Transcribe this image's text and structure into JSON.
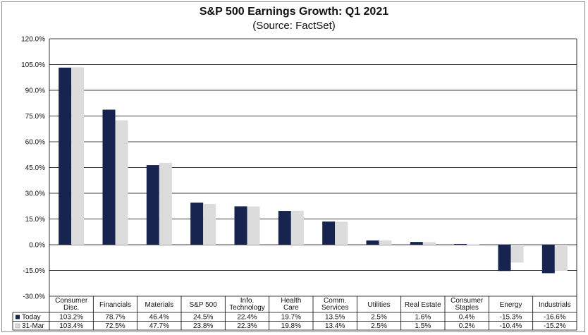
{
  "chart_data": {
    "type": "bar",
    "title": "S&P 500 Earnings Growth: Q1 2021",
    "subtitle": "(Source: FactSet)",
    "categories": [
      [
        "Consumer",
        "Disc."
      ],
      [
        "Financials"
      ],
      [
        "Materials"
      ],
      [
        "S&P 500"
      ],
      [
        "Info.",
        "Technology"
      ],
      [
        "Health",
        "Care"
      ],
      [
        "Comm.",
        "Services"
      ],
      [
        "Utilities"
      ],
      [
        "Real Estate"
      ],
      [
        "Consumer",
        "Staples"
      ],
      [
        "Energy"
      ],
      [
        "Industrials"
      ]
    ],
    "series": [
      {
        "name": "Today",
        "color": "#17244f",
        "values": [
          103.2,
          78.7,
          46.4,
          24.5,
          22.4,
          19.7,
          13.5,
          2.5,
          1.6,
          0.4,
          -15.3,
          -16.6
        ],
        "labels": [
          "103.2%",
          "78.7%",
          "46.4%",
          "24.5%",
          "22.4%",
          "19.7%",
          "13.5%",
          "2.5%",
          "1.6%",
          "0.4%",
          "-15.3%",
          "-16.6%"
        ]
      },
      {
        "name": "31-Mar",
        "color": "#dcdcdc",
        "values": [
          103.4,
          72.5,
          47.7,
          23.8,
          22.3,
          19.8,
          13.4,
          2.5,
          1.5,
          0.2,
          -10.4,
          -15.2
        ],
        "labels": [
          "103.4%",
          "72.5%",
          "47.7%",
          "23.8%",
          "22.3%",
          "19.8%",
          "13.4%",
          "2.5%",
          "1.5%",
          "0.2%",
          "-10.4%",
          "-15.2%"
        ]
      }
    ],
    "ylim": [
      -30,
      120
    ],
    "yticks": [
      120,
      105,
      90,
      75,
      60,
      45,
      30,
      15,
      0,
      -15,
      -30
    ],
    "ytick_labels": [
      "120.0%",
      "105.0%",
      "90.0%",
      "75.0%",
      "60.0%",
      "45.0%",
      "30.0%",
      "15.0%",
      "0.0%",
      "-15.0%",
      "-30.0%"
    ],
    "grid": true,
    "legend": "data-table"
  }
}
